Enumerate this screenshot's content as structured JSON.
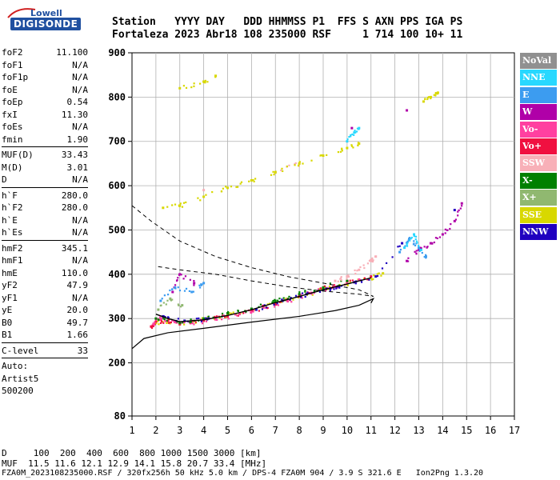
{
  "logo": {
    "line1": "Lowell",
    "line2": "DIGISONDE"
  },
  "header": {
    "line1": "Station   YYYY DAY   DDD HHMMSS P1  FFS S AXN PPS IGA PS",
    "line2": "Fortaleza 2023 Abr18 108 235000 RSF     1 714 100 10+ 11"
  },
  "params": [
    [
      {
        "k": "foF2",
        "v": "11.100"
      },
      {
        "k": "foF1",
        "v": "N/A"
      },
      {
        "k": "foF1p",
        "v": "N/A"
      },
      {
        "k": "foE",
        "v": "N/A"
      },
      {
        "k": "foEp",
        "v": "0.54"
      },
      {
        "k": "fxI",
        "v": "11.30"
      },
      {
        "k": "foEs",
        "v": "N/A"
      },
      {
        "k": "fmin",
        "v": "1.90"
      }
    ],
    [
      {
        "k": "MUF(D)",
        "v": "33.43"
      },
      {
        "k": "M(D)",
        "v": "3.01"
      },
      {
        "k": "D",
        "v": "N/A"
      }
    ],
    [
      {
        "k": "h`F",
        "v": "280.0"
      },
      {
        "k": "h`F2",
        "v": "280.0"
      },
      {
        "k": "h`E",
        "v": "N/A"
      },
      {
        "k": "h`Es",
        "v": "N/A"
      }
    ],
    [
      {
        "k": "hmF2",
        "v": "345.1"
      },
      {
        "k": "hmF1",
        "v": "N/A"
      },
      {
        "k": "hmE",
        "v": "110.0"
      },
      {
        "k": "yF2",
        "v": "47.9"
      },
      {
        "k": "yF1",
        "v": "N/A"
      },
      {
        "k": "yE",
        "v": "20.0"
      },
      {
        "k": "B0",
        "v": "49.7"
      },
      {
        "k": "B1",
        "v": "1.66"
      }
    ],
    [
      {
        "k": "C-level",
        "v": "33"
      }
    ]
  ],
  "auto": {
    "line1": "Auto:",
    "line2": "Artist5",
    "line3": "500200"
  },
  "legend": [
    {
      "label": "NoVal",
      "color": "#909090"
    },
    {
      "label": "NNE",
      "color": "#28d8ff"
    },
    {
      "label": "E",
      "color": "#3c9cf0"
    },
    {
      "label": "W",
      "color": "#b000a8"
    },
    {
      "label": "Vo-",
      "color": "#ff40a0"
    },
    {
      "label": "Vo+",
      "color": "#f01040"
    },
    {
      "label": "SSW",
      "color": "#f8b0b8"
    },
    {
      "label": "X-",
      "color": "#008000"
    },
    {
      "label": "X+",
      "color": "#90b870"
    },
    {
      "label": "SSE",
      "color": "#d8d800"
    },
    {
      "label": "NNW",
      "color": "#2000c0"
    }
  ],
  "footer": {
    "line1": "D     100  200  400  600  800 1000 1500 3000 [km]",
    "line2": "MUF  11.5 11.6 12.1 12.9 14.1 15.8 20.7 33.4 [MHz]",
    "line3": "FZA0M_2023108235000.RSF / 320fx256h 50 kHz 5.0 km / DPS-4 FZA0M 904 / 3.9 S 321.6 E   Ion2Png 1.3.20"
  },
  "chart_data": {
    "type": "scatter",
    "xlim": [
      1,
      17
    ],
    "ylim": [
      80,
      900
    ],
    "xticks": [
      1,
      2,
      3,
      4,
      5,
      6,
      7,
      8,
      9,
      10,
      11,
      12,
      13,
      14,
      15,
      16,
      17
    ],
    "yticks": [
      80,
      200,
      300,
      400,
      500,
      600,
      700,
      800,
      900
    ],
    "grid": true,
    "legend_position": "right",
    "series": [
      {
        "name": "SSE",
        "color": "#d8d800",
        "x": [
          2.0,
          3.0,
          4.0,
          5.0,
          6.0,
          7.0,
          8.0,
          9.0,
          10.0,
          11.0,
          11.5
        ],
        "y": [
          290,
          290,
          297,
          307,
          320,
          336,
          350,
          365,
          378,
          392,
          402
        ]
      },
      {
        "name": "Vo+",
        "color": "#f01040",
        "x": [
          1.8,
          2.0,
          2.5,
          3.0,
          4.0,
          5.0,
          6.0,
          7.0,
          8.0,
          9.0,
          10.0,
          11.0
        ],
        "y": [
          282,
          293,
          295,
          287,
          295,
          305,
          318,
          332,
          350,
          370,
          382,
          395
        ]
      },
      {
        "name": "Vo-",
        "color": "#ff40a0",
        "x": [
          1.9,
          2.2,
          2.8,
          3.5,
          4.5,
          5.5,
          6.5,
          7.5,
          8.5,
          9.5,
          10.5
        ],
        "y": [
          288,
          300,
          292,
          290,
          298,
          310,
          325,
          340,
          358,
          372,
          388
        ]
      },
      {
        "name": "X-",
        "color": "#008000",
        "x": [
          2.0,
          3.0,
          4.0,
          5.0,
          6.0,
          7.0,
          8.0,
          9.0,
          10.0
        ],
        "y": [
          300,
          290,
          300,
          312,
          322,
          340,
          355,
          370,
          385
        ]
      },
      {
        "name": "NNW",
        "color": "#2000c0",
        "x": [
          2.3,
          3.2,
          4.2,
          6.2,
          7.3,
          8.3,
          9.3,
          10.3,
          11.2,
          12.3,
          14.5
        ],
        "y": [
          305,
          295,
          300,
          320,
          340,
          355,
          368,
          382,
          395,
          470,
          545
        ]
      },
      {
        "name": "W",
        "color": "#b000a8",
        "x": [
          2.7,
          3.0,
          3.6,
          12.5,
          13.0,
          13.5,
          14.0,
          14.5,
          14.8,
          12.5,
          10.2
        ],
        "y": [
          360,
          400,
          380,
          430,
          455,
          470,
          490,
          520,
          560,
          770,
          730
        ]
      },
      {
        "name": "E",
        "color": "#3c9cf0",
        "x": [
          2.2,
          2.8,
          3.5,
          4.0,
          12.2,
          12.6,
          13.0,
          13.3
        ],
        "y": [
          340,
          370,
          360,
          380,
          450,
          480,
          460,
          440
        ]
      },
      {
        "name": "NNE",
        "color": "#28d8ff",
        "x": [
          12.4,
          12.8,
          13.1,
          10.0,
          10.3,
          10.5
        ],
        "y": [
          460,
          490,
          455,
          700,
          720,
          730
        ]
      },
      {
        "name": "SSW",
        "color": "#f8b0b8",
        "x": [
          9.5,
          10.0,
          10.5,
          11.0,
          11.2,
          7.0,
          8.0,
          4.0
        ],
        "y": [
          385,
          395,
          410,
          430,
          440,
          630,
          650,
          590
        ]
      },
      {
        "name": "X+",
        "color": "#90b870",
        "x": [
          2.1,
          2.6,
          3.1
        ],
        "y": [
          320,
          345,
          330
        ]
      },
      {
        "name": "SSE upper",
        "color": "#d8d800",
        "x": [
          2.3,
          3.0,
          4.0,
          5.0,
          6.0,
          7.0,
          8.0,
          9.0,
          10.0,
          10.5,
          3.0,
          4.0,
          4.5,
          13.2,
          13.5,
          13.8
        ],
        "y": [
          550,
          555,
          575,
          595,
          612,
          630,
          650,
          668,
          685,
          695,
          820,
          835,
          848,
          790,
          800,
          810
        ]
      }
    ],
    "profile_line": {
      "x": [
        2.0,
        2.5,
        3.0,
        4.0,
        5.0,
        6.0,
        7.0,
        8.0,
        9.0,
        10.0,
        11.0
      ],
      "y": [
        310,
        300,
        293,
        297,
        307,
        320,
        336,
        350,
        365,
        378,
        392
      ]
    },
    "true_height_profile": {
      "x": [
        1.0,
        1.5,
        2.5,
        4.0,
        6.0,
        8.0,
        9.5,
        10.5,
        11.1,
        11.0
      ],
      "y": [
        232,
        255,
        268,
        278,
        292,
        305,
        318,
        330,
        345,
        335
      ]
    },
    "dashed_profile": {
      "x": [
        1.0,
        1.8,
        3.0,
        4.5,
        6.0,
        7.5,
        9.0,
        10.5,
        11.1,
        10.5,
        9.0,
        7.5,
        6.0,
        4.5,
        3.0,
        2.0
      ],
      "y": [
        555,
        520,
        475,
        440,
        415,
        395,
        380,
        365,
        350,
        355,
        362,
        372,
        385,
        400,
        410,
        418
      ]
    }
  }
}
